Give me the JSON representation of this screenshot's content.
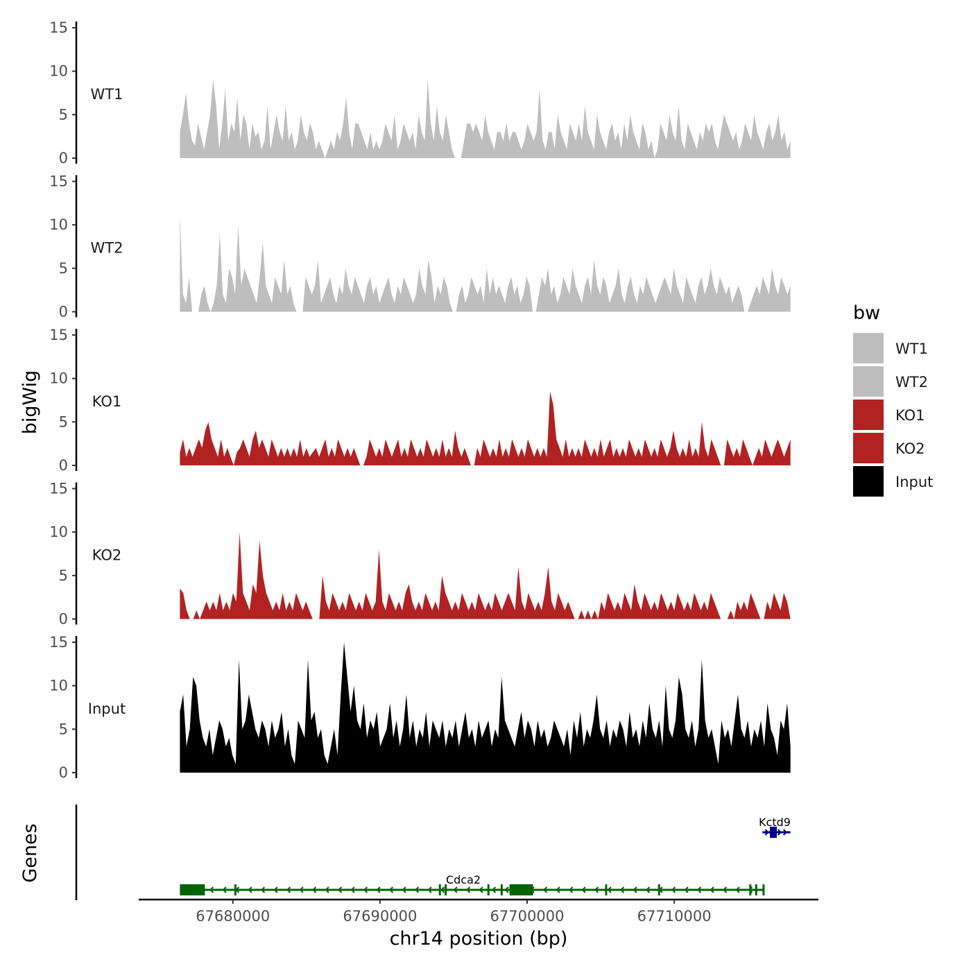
{
  "chart_data": {
    "type": "area",
    "title": "",
    "xlabel": "chr14 position (bp)",
    "ylabel": "bigWig",
    "genes_label": "Genes",
    "xlim": [
      67673600,
      67719800
    ],
    "x_range_data": [
      67676400,
      67717900
    ],
    "ylim": [
      0,
      15
    ],
    "y_ticks": [
      0,
      5,
      10,
      15
    ],
    "x_ticks": [
      67680000,
      67690000,
      67700000,
      67710000
    ],
    "x_tick_labels": [
      "67680000",
      "67690000",
      "67700000",
      "67710000"
    ],
    "legend": {
      "title": "bw",
      "position": "right",
      "entries": [
        {
          "label": "WT1",
          "color": "#bebebe"
        },
        {
          "label": "WT2",
          "color": "#bebebe"
        },
        {
          "label": "KO1",
          "color": "#b22222"
        },
        {
          "label": "KO2",
          "color": "#b22222"
        },
        {
          "label": "Input",
          "color": "#000000"
        }
      ]
    },
    "series": [
      {
        "name": "WT1",
        "color": "#bebebe",
        "values": [
          3,
          5,
          7.5,
          4,
          2,
          1.5,
          4,
          2.5,
          1,
          3,
          5,
          9,
          6,
          1,
          4,
          8,
          2,
          4,
          3,
          7,
          2,
          5,
          4,
          1,
          4,
          2.5,
          3,
          1,
          2,
          6,
          1,
          3,
          5,
          3,
          2,
          6,
          2,
          3,
          1,
          2,
          5,
          3,
          2,
          4,
          3,
          1,
          2,
          1,
          0,
          1,
          2,
          1,
          3,
          2,
          4,
          7,
          3,
          1,
          4,
          4,
          3,
          2,
          1,
          3,
          1,
          2,
          1,
          2,
          4,
          3,
          2,
          5,
          1,
          2,
          4,
          3,
          2,
          3,
          1,
          5,
          3,
          2,
          9,
          4,
          2,
          6,
          3,
          2,
          5,
          3,
          1,
          0,
          0,
          0,
          2,
          4,
          4,
          3,
          4,
          3,
          2,
          5,
          3,
          2,
          1,
          3,
          3,
          2,
          4,
          2,
          3,
          3,
          2,
          1,
          2,
          4,
          3,
          2,
          3,
          8,
          2,
          1,
          3,
          3,
          1,
          5,
          3,
          2,
          1,
          4,
          3,
          2,
          4,
          2,
          6,
          3,
          2,
          1,
          5,
          3,
          2,
          1,
          3,
          4,
          2,
          3,
          1,
          4,
          2,
          5,
          3,
          2,
          1,
          4,
          3,
          1,
          2,
          0,
          1,
          4,
          3,
          2,
          5,
          3,
          2,
          6,
          2,
          1,
          4,
          3,
          2,
          1,
          3,
          2,
          4,
          3,
          4,
          2,
          1,
          3,
          5,
          4,
          3,
          2,
          3,
          1,
          2,
          4,
          3,
          2,
          5,
          3,
          2,
          1,
          3,
          4,
          2,
          3,
          5,
          2,
          3,
          1,
          2
        ]
      },
      {
        "name": "WT2",
        "color": "#bebebe",
        "values": [
          11,
          2,
          1,
          4,
          0,
          0,
          0,
          2,
          3,
          1,
          0,
          1,
          3,
          9,
          2,
          1,
          5,
          4,
          2,
          10,
          3,
          5,
          4,
          3,
          2,
          1,
          4,
          8,
          3,
          2,
          1,
          4,
          3,
          2,
          6,
          2,
          3,
          1,
          0,
          0,
          0,
          4,
          3,
          2,
          3,
          6,
          1,
          2,
          3,
          4,
          2,
          1,
          3,
          2,
          5,
          3,
          2,
          4,
          3,
          2,
          1,
          3,
          4,
          2,
          3,
          1,
          2,
          3,
          4,
          2,
          1,
          3,
          2,
          4,
          3,
          2,
          1,
          2,
          5,
          3,
          2,
          6,
          4,
          1,
          3,
          2,
          4,
          3,
          1,
          0,
          0,
          2,
          3,
          1,
          2,
          4,
          3,
          2,
          3,
          1,
          5,
          2,
          4,
          2,
          3,
          2,
          1,
          3,
          4,
          2,
          3,
          1,
          2,
          4,
          3,
          0,
          0,
          2,
          4,
          3,
          5,
          2,
          3,
          1,
          2,
          4,
          3,
          2,
          5,
          3,
          2,
          1,
          3,
          4,
          2,
          6,
          3,
          2,
          4,
          3,
          1,
          2,
          3,
          5,
          2,
          1,
          3,
          4,
          2,
          1,
          3,
          2,
          4,
          3,
          2,
          1,
          2,
          3,
          4,
          3,
          2,
          5,
          3,
          2,
          1,
          4,
          3,
          2,
          1,
          3,
          4,
          2,
          3,
          5,
          3,
          2,
          4,
          3,
          2,
          3,
          1,
          2,
          3,
          2,
          0,
          0,
          1,
          2,
          3,
          2,
          4,
          3,
          2,
          5,
          3,
          2,
          4,
          3,
          2,
          3
        ]
      },
      {
        "name": "KO1",
        "color": "#b22222",
        "values": [
          1.5,
          3,
          1,
          2,
          1,
          2,
          3,
          2,
          4,
          5,
          3,
          2,
          1,
          3,
          1,
          2,
          1,
          0,
          1.5,
          2,
          3,
          2,
          1,
          3,
          4,
          2,
          3,
          2,
          1,
          3,
          2,
          1,
          2,
          1,
          2,
          1,
          2,
          1,
          3,
          1,
          2,
          1,
          1.5,
          2,
          1,
          2,
          3,
          1,
          2,
          1,
          3,
          2,
          1,
          2,
          1,
          2,
          1,
          0,
          0,
          1,
          3,
          2,
          1,
          2,
          1,
          3,
          2,
          1,
          2,
          3,
          1,
          2,
          1,
          3,
          2,
          1,
          2,
          1,
          3,
          2,
          1,
          2,
          1,
          3,
          1,
          2,
          1,
          4,
          2,
          1,
          2,
          1,
          0,
          0,
          2,
          1,
          3,
          2,
          1,
          2,
          1,
          3,
          1,
          2,
          1,
          3,
          2,
          1,
          2,
          1,
          3,
          2,
          1,
          2,
          1,
          2,
          1,
          8.5,
          7,
          3,
          2,
          1,
          3,
          1,
          2,
          1,
          2,
          1,
          3,
          2,
          1,
          2,
          1,
          3,
          1,
          2,
          3,
          1,
          2,
          1,
          2,
          1,
          3,
          2,
          1,
          2,
          1,
          3,
          2,
          1,
          2,
          1,
          3,
          2,
          1,
          2,
          4,
          2,
          1,
          2,
          1,
          3,
          1,
          2,
          1,
          5,
          2,
          1,
          3,
          2,
          1,
          0,
          0,
          3,
          2,
          1,
          2,
          1,
          3,
          2,
          1,
          0,
          1,
          2,
          1,
          3,
          2,
          1,
          2,
          3,
          2,
          1,
          2,
          3
        ]
      },
      {
        "name": "KO2",
        "color": "#b22222",
        "values": [
          3.5,
          3,
          1,
          0,
          0,
          1,
          0,
          1,
          2,
          1,
          2,
          1,
          3,
          1,
          2,
          1,
          3,
          2,
          10,
          3,
          2,
          1,
          4,
          3,
          9,
          5,
          3,
          2,
          1,
          2,
          1,
          3,
          1,
          2,
          1,
          3,
          2,
          1,
          2,
          1,
          0,
          0,
          0,
          5,
          2,
          1,
          3,
          2,
          1,
          2,
          1,
          3,
          2,
          1,
          2,
          1,
          3,
          2,
          1,
          2,
          8,
          2,
          1,
          3,
          2,
          1,
          2,
          1,
          3,
          4,
          2,
          1,
          2,
          1,
          3,
          2,
          1,
          2,
          1,
          5,
          3,
          2,
          1,
          2,
          1,
          3,
          2,
          1,
          2,
          1,
          3,
          2,
          1,
          2,
          1,
          3,
          2,
          1,
          2,
          3,
          2,
          1,
          6,
          2,
          1,
          3,
          2,
          1,
          2,
          1,
          3,
          6,
          2,
          1,
          3,
          2,
          1,
          2,
          1,
          0,
          0,
          1,
          0,
          1,
          0,
          1,
          0,
          2,
          1,
          3,
          2,
          1,
          2,
          1,
          3,
          2,
          1,
          4,
          2,
          1,
          3,
          2,
          1,
          2,
          1,
          3,
          2,
          1,
          2,
          1,
          3,
          2,
          1,
          2,
          1,
          3,
          2,
          1,
          2,
          1,
          3,
          2,
          1,
          0,
          0,
          0,
          1,
          0,
          2,
          1,
          2,
          1,
          3,
          2,
          1,
          0,
          0,
          2,
          1,
          3,
          2,
          1,
          3,
          2,
          0
        ]
      },
      {
        "name": "Input",
        "color": "#000000",
        "values": [
          7,
          9,
          3,
          5,
          11,
          10,
          6,
          4,
          3,
          5,
          2,
          4,
          6,
          5,
          3,
          4,
          2,
          1,
          13,
          5,
          6,
          9,
          7,
          5,
          4,
          6,
          5,
          3,
          6,
          4,
          5,
          7,
          3,
          5,
          2,
          1,
          6,
          5,
          4,
          13,
          6,
          7,
          4,
          5,
          2,
          1,
          3,
          5,
          2,
          9,
          15,
          11,
          7,
          10,
          6,
          5,
          8,
          4,
          6,
          5,
          7,
          3,
          4,
          5,
          8,
          4,
          6,
          3,
          5,
          9,
          4,
          6,
          3,
          5,
          4,
          7,
          3,
          6,
          5,
          4,
          6,
          3,
          5,
          4,
          6,
          3,
          5,
          7,
          4,
          5,
          3,
          6,
          4,
          5,
          6,
          3,
          5,
          4,
          11,
          6,
          5,
          4,
          3,
          5,
          7,
          4,
          6,
          5,
          3,
          6,
          4,
          5,
          3,
          4,
          6,
          5,
          4,
          3,
          5,
          2,
          6,
          4,
          7,
          3,
          5,
          4,
          6,
          9,
          5,
          4,
          6,
          3,
          5,
          4,
          6,
          5,
          3,
          7,
          4,
          5,
          3,
          6,
          4,
          8,
          5,
          4,
          6,
          3,
          10,
          5,
          4,
          6,
          11,
          9,
          5,
          4,
          6,
          3,
          5,
          13,
          6,
          4,
          5,
          3,
          1,
          6,
          4,
          5,
          3,
          6,
          9,
          5,
          4,
          6,
          3,
          5,
          4,
          6,
          3,
          8,
          5,
          4,
          2,
          6,
          5,
          8,
          3
        ]
      }
    ],
    "genes": [
      {
        "name": "Cdca2",
        "strand": "-",
        "color": "#006400",
        "start": 67676400,
        "end": 67716100
      },
      {
        "name": "Kctd9",
        "strand": "+",
        "color": "#00008b",
        "start": 67716000,
        "end": 67717900
      }
    ]
  }
}
